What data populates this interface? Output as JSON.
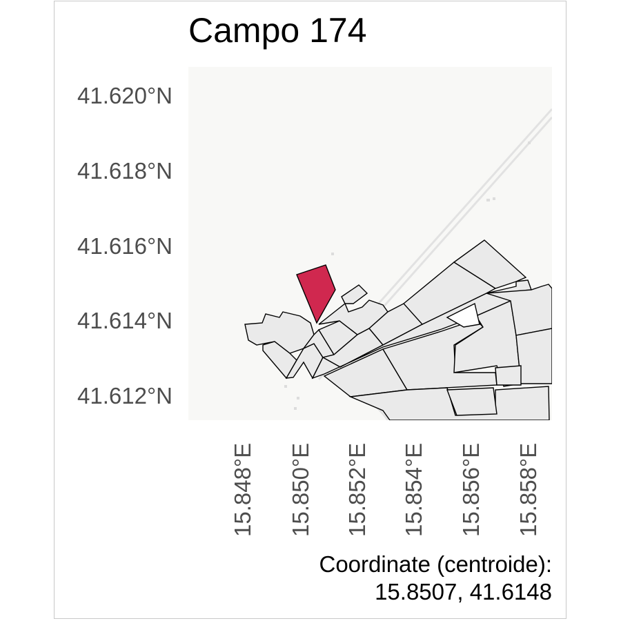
{
  "title": "Campo 174",
  "map": {
    "background_color": "#f8f8f6",
    "parcel_fill": "#eaeaea",
    "highlight_fill": "#d0284f",
    "road_color": "#e2e2e2",
    "y_ticks": [
      "41.620°N",
      "41.618°N",
      "41.616°N",
      "41.614°N",
      "41.612°N"
    ],
    "x_ticks": [
      "15.848°E",
      "15.850°E",
      "15.852°E",
      "15.854°E",
      "15.856°E",
      "15.858°E"
    ]
  },
  "caption": {
    "line1": "Coordinate (centroide):",
    "line2": "15.8507, 41.6148"
  }
}
